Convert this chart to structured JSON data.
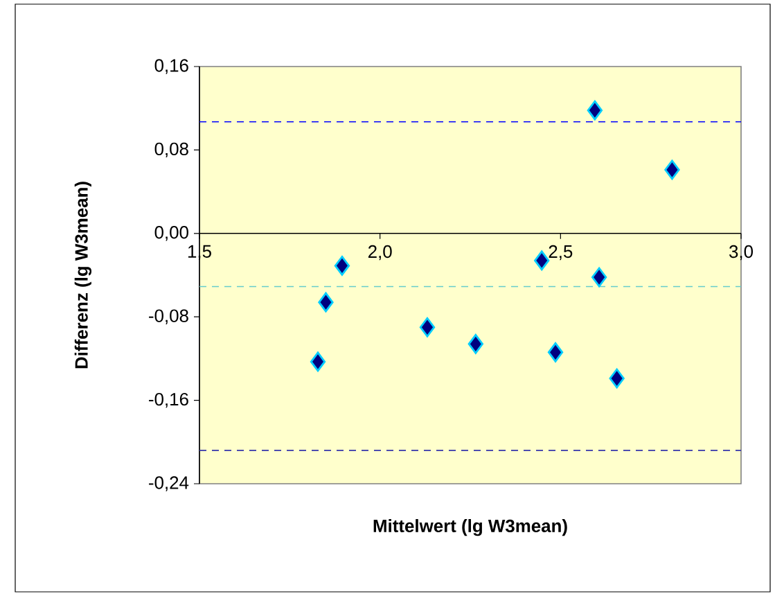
{
  "chart_data": {
    "type": "scatter",
    "xlabel": "Mittelwert (lg W3mean)",
    "ylabel": "Differenz (lg W3mean)",
    "x": [
      1.828,
      1.85,
      1.895,
      2.131,
      2.265,
      2.448,
      2.486,
      2.595,
      2.607,
      2.656,
      2.809
    ],
    "series": [
      {
        "color": "#000080",
        "values": [
          -0.123,
          -0.066,
          -0.031,
          -0.09,
          -0.106,
          -0.026,
          -0.114,
          0.118,
          -0.042,
          -0.139,
          0.061
        ]
      }
    ],
    "marker": "diamond",
    "grid": false,
    "xlim": [
      1.5,
      3.0
    ],
    "ylim": [
      -0.24,
      0.16
    ],
    "xticks": [
      {
        "value": 1.5,
        "label": "1,5"
      },
      {
        "value": 2.0,
        "label": "2,0"
      },
      {
        "value": 2.5,
        "label": "2,5"
      },
      {
        "value": 3.0,
        "label": "3,0"
      }
    ],
    "yticks": [
      {
        "value": -0.24,
        "label": "-0,24"
      },
      {
        "value": -0.16,
        "label": "-0,16"
      },
      {
        "value": -0.08,
        "label": "-0,08"
      },
      {
        "value": 0.0,
        "label": "0,00"
      },
      {
        "value": 0.08,
        "label": "0,08"
      },
      {
        "value": 0.16,
        "label": "0,16"
      }
    ],
    "ref_lines": [
      {
        "axis": "y",
        "value": 0.107,
        "color": "#0000ff",
        "line_style": "dashed"
      },
      {
        "axis": "y",
        "value": -0.051,
        "color": "#66cccc",
        "line_style": "dashed"
      },
      {
        "axis": "y",
        "value": -0.208,
        "color": "#3333aa",
        "line_style": "dashed"
      }
    ]
  }
}
